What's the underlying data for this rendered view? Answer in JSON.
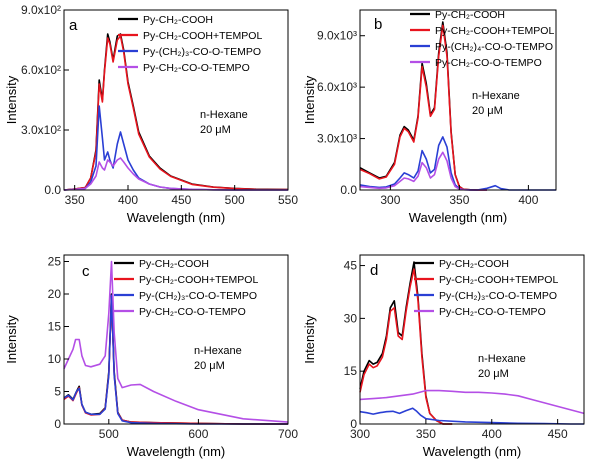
{
  "chart_data": [
    {
      "id": "a",
      "type": "line",
      "panel_letter": "a",
      "xlabel": "Wavelength (nm)",
      "ylabel": "Intensity",
      "xlim": [
        340,
        550
      ],
      "ylim": [
        0,
        900
      ],
      "xticks": [
        350,
        400,
        450,
        500,
        550
      ],
      "xtick_labels": [
        "350",
        "400",
        "450",
        "500",
        "550"
      ],
      "yticks": [
        0,
        300,
        600,
        900
      ],
      "ytick_labels": [
        "0.0",
        "3.0x10²",
        "6.0x10²",
        "9.0x10²"
      ],
      "annotation": [
        "n-Hexane",
        "20 μM"
      ],
      "legend": [
        "Py-CH₂-COOH",
        "Py-CH₂-COOH+TEMPOL",
        "Py-(CH₂)₃-CO-O-TEMPO",
        "Py-CH₂-CO-O-TEMPO"
      ],
      "series": [
        {
          "name": "Py-CH₂-COOH",
          "color": "#000000",
          "x": [
            340,
            350,
            360,
            365,
            370,
            373,
            376,
            378,
            381,
            383,
            386,
            390,
            393,
            396,
            400,
            405,
            410,
            420,
            430,
            440,
            460,
            480,
            500,
            520,
            550
          ],
          "y": [
            0,
            5,
            12,
            60,
            200,
            550,
            450,
            600,
            780,
            740,
            650,
            770,
            780,
            700,
            540,
            420,
            290,
            170,
            110,
            70,
            30,
            15,
            8,
            4,
            2
          ]
        },
        {
          "name": "Py-CH₂-COOH+TEMPOL",
          "color": "#e8141e",
          "x": [
            340,
            350,
            360,
            365,
            370,
            373,
            376,
            378,
            381,
            383,
            386,
            390,
            393,
            396,
            400,
            405,
            410,
            420,
            430,
            440,
            460,
            480,
            500,
            520,
            550
          ],
          "y": [
            0,
            5,
            12,
            60,
            190,
            530,
            440,
            590,
            760,
            730,
            640,
            750,
            770,
            690,
            530,
            410,
            280,
            165,
            105,
            68,
            28,
            14,
            7,
            3,
            2
          ]
        },
        {
          "name": "Py-(CH₂)₃-CO-O-TEMPO",
          "color": "#2a3fd4",
          "x": [
            340,
            350,
            360,
            365,
            370,
            373,
            376,
            378,
            381,
            383,
            386,
            390,
            393,
            396,
            400,
            405,
            410,
            420,
            430,
            440,
            460,
            480,
            500,
            520,
            550
          ],
          "y": [
            0,
            3,
            8,
            40,
            120,
            420,
            260,
            150,
            190,
            150,
            110,
            230,
            290,
            230,
            150,
            100,
            60,
            30,
            15,
            8,
            3,
            1,
            0,
            0,
            0
          ]
        },
        {
          "name": "Py-CH₂-CO-O-TEMPO",
          "color": "#b44fe6",
          "x": [
            340,
            350,
            360,
            365,
            370,
            373,
            376,
            378,
            381,
            383,
            386,
            390,
            393,
            396,
            400,
            405,
            410,
            420,
            430,
            440,
            460,
            480,
            500,
            520,
            550
          ],
          "y": [
            0,
            3,
            8,
            30,
            70,
            140,
            110,
            100,
            150,
            140,
            120,
            150,
            160,
            140,
            110,
            80,
            55,
            30,
            15,
            8,
            3,
            1,
            0,
            0,
            0
          ]
        }
      ]
    },
    {
      "id": "b",
      "type": "line",
      "panel_letter": "b",
      "xlabel": "Wavelength (nm)",
      "ylabel": "Intensity",
      "xlim": [
        278,
        420
      ],
      "ylim": [
        0,
        10500
      ],
      "xticks": [
        300,
        350,
        400
      ],
      "xtick_labels": [
        "300",
        "350",
        "400"
      ],
      "yticks": [
        0,
        3000,
        6000,
        9000
      ],
      "ytick_labels": [
        "0.0",
        "3.0x10³",
        "6.0x10³",
        "9.0x10³"
      ],
      "annotation": [
        "n-Hexane",
        "20 μM"
      ],
      "legend": [
        "Py-CH₂-COOH",
        "Py-CH₂-COOH+TEMPOL",
        "Py-(CH₂)₄-CO-O-TEMPO",
        "Py-CH₂-CO-O-TEMPO"
      ],
      "series": [
        {
          "name": "Py-CH₂-COOH",
          "color": "#000000",
          "x": [
            278,
            285,
            292,
            297,
            303,
            307,
            310,
            313,
            317,
            320,
            323,
            326,
            329,
            332,
            335,
            338,
            341,
            344,
            347,
            350,
            353,
            358,
            363,
            370
          ],
          "y": [
            1300,
            1000,
            700,
            800,
            1600,
            3200,
            3700,
            3500,
            2900,
            4300,
            7400,
            6200,
            4400,
            4800,
            8000,
            9800,
            8000,
            3400,
            900,
            200,
            40,
            10,
            0,
            0
          ]
        },
        {
          "name": "Py-CH₂-COOH+TEMPOL",
          "color": "#e8141e",
          "x": [
            278,
            285,
            292,
            297,
            303,
            307,
            310,
            313,
            317,
            320,
            323,
            326,
            329,
            332,
            335,
            338,
            341,
            344,
            347,
            350,
            353,
            358,
            363,
            370
          ],
          "y": [
            1200,
            950,
            650,
            760,
            1500,
            3100,
            3600,
            3400,
            2800,
            4200,
            7200,
            6000,
            4300,
            4700,
            7800,
            9600,
            7800,
            3300,
            880,
            190,
            40,
            10,
            0,
            0
          ]
        },
        {
          "name": "Py-(CH₂)₄-CO-O-TEMPO",
          "color": "#2a3fd4",
          "x": [
            278,
            285,
            292,
            297,
            303,
            307,
            310,
            313,
            317,
            320,
            323,
            326,
            329,
            332,
            335,
            338,
            341,
            344,
            347,
            350,
            353,
            358,
            363,
            370,
            376,
            380,
            386,
            400,
            420
          ],
          "y": [
            300,
            200,
            150,
            180,
            350,
            700,
            1000,
            900,
            700,
            1100,
            2300,
            1800,
            1000,
            1200,
            2600,
            3100,
            2500,
            1000,
            300,
            80,
            20,
            5,
            0,
            100,
            250,
            80,
            0,
            0,
            0
          ]
        },
        {
          "name": "Py-CH₂-CO-O-TEMPO",
          "color": "#b44fe6",
          "x": [
            278,
            285,
            292,
            297,
            303,
            307,
            310,
            313,
            317,
            320,
            323,
            326,
            329,
            332,
            335,
            338,
            341,
            344,
            347,
            350,
            353,
            358,
            363,
            370
          ],
          "y": [
            200,
            150,
            100,
            120,
            250,
            500,
            700,
            650,
            500,
            800,
            1600,
            1300,
            700,
            900,
            1800,
            2200,
            1700,
            700,
            200,
            60,
            15,
            0,
            0,
            0
          ]
        }
      ]
    },
    {
      "id": "c",
      "type": "line",
      "panel_letter": "c",
      "xlabel": "Wavelength (nm)",
      "ylabel": "Intensity",
      "xlim": [
        450,
        700
      ],
      "ylim": [
        0,
        26
      ],
      "xticks": [
        500,
        600,
        700
      ],
      "xtick_labels": [
        "500",
        "600",
        "700"
      ],
      "yticks": [
        0,
        5,
        10,
        15,
        20,
        25
      ],
      "ytick_labels": [
        "0",
        "5",
        "10",
        "15",
        "20",
        "25"
      ],
      "annotation": [
        "n-Hexane",
        "20 μM"
      ],
      "legend": [
        "Py-CH₂-COOH",
        "Py-CH₂-COOH+TEMPOL",
        "Py-(CH₂)₃-CO-O-TEMPO",
        "Py-CH₂-CO-O-TEMPO"
      ],
      "series": [
        {
          "name": "Py-CH₂-COOH",
          "color": "#000000",
          "x": [
            450,
            455,
            460,
            464,
            467,
            470,
            474,
            480,
            490,
            496,
            500,
            503,
            506,
            510,
            515,
            525,
            550,
            600,
            650,
            700
          ],
          "y": [
            4,
            4.5,
            3.8,
            5,
            5.8,
            3,
            1.8,
            1.5,
            1.6,
            2.5,
            8,
            20,
            8,
            1.8,
            0.6,
            0.3,
            0.2,
            0.1,
            0,
            0
          ]
        },
        {
          "name": "Py-CH₂-COOH+TEMPOL",
          "color": "#e8141e",
          "x": [
            450,
            455,
            460,
            464,
            467,
            470,
            474,
            480,
            490,
            496,
            500,
            503,
            506,
            510,
            515,
            525,
            550,
            600,
            650,
            700
          ],
          "y": [
            3.8,
            4.3,
            3.6,
            4.8,
            5.6,
            2.9,
            1.7,
            1.4,
            1.5,
            2.4,
            7.6,
            19.5,
            7.6,
            1.7,
            0.6,
            0.3,
            0.2,
            0.1,
            0,
            0
          ]
        },
        {
          "name": "Py-(CH₂)₃-CO-O-TEMPO",
          "color": "#2a3fd4",
          "x": [
            450,
            455,
            460,
            464,
            467,
            470,
            474,
            480,
            490,
            496,
            500,
            503,
            506,
            510,
            515,
            525,
            550,
            600,
            650,
            700
          ],
          "y": [
            4,
            4.4,
            3.7,
            5,
            5.5,
            3,
            1.8,
            1.5,
            1.5,
            2.3,
            7.5,
            19.8,
            7.5,
            1.6,
            0.5,
            0.2,
            0.1,
            0,
            0,
            0
          ]
        },
        {
          "name": "Py-CH₂-CO-O-TEMPO",
          "color": "#b44fe6",
          "x": [
            450,
            455,
            460,
            463,
            467,
            470,
            474,
            480,
            490,
            496,
            500,
            503,
            506,
            510,
            515,
            525,
            535,
            550,
            575,
            600,
            650,
            700
          ],
          "y": [
            8.5,
            10,
            11.5,
            13,
            13,
            10.5,
            9,
            8.8,
            9.2,
            10.5,
            17,
            25,
            14,
            7,
            5.6,
            6,
            6.1,
            5,
            3.5,
            2.2,
            0.8,
            0.3
          ]
        }
      ]
    },
    {
      "id": "d",
      "type": "line",
      "panel_letter": "d",
      "xlabel": "Wavelength (nm)",
      "ylabel": "Intensity",
      "xlim": [
        300,
        470
      ],
      "ylim": [
        0,
        48
      ],
      "xticks": [
        300,
        350,
        400,
        450
      ],
      "xtick_labels": [
        "300",
        "350",
        "400",
        "450"
      ],
      "yticks": [
        0,
        15,
        30,
        45
      ],
      "ytick_labels": [
        "0",
        "15",
        "30",
        "45"
      ],
      "annotation": [
        "n-Hexane",
        "20 μM"
      ],
      "legend": [
        "Py-CH₂-COOH",
        "Py-CH₂-COOH+TEMPOL",
        "Py-(CH₂)₃-CO-O-TEMPO",
        "Py-CH₂-CO-O-TEMPO"
      ],
      "series": [
        {
          "name": "Py-CH₂-COOH",
          "color": "#000000",
          "x": [
            300,
            303,
            307,
            310,
            313,
            317,
            320,
            323,
            326,
            329,
            332,
            335,
            338,
            341,
            344,
            347,
            350,
            353,
            358,
            363,
            370
          ],
          "y": [
            10,
            15,
            18,
            17,
            17.5,
            20,
            25,
            33,
            35,
            26,
            25,
            33,
            40,
            46,
            36,
            20,
            8,
            3,
            1,
            0,
            0
          ]
        },
        {
          "name": "Py-CH₂-COOH+TEMPOL",
          "color": "#e8141e",
          "x": [
            300,
            303,
            307,
            310,
            313,
            317,
            320,
            323,
            326,
            329,
            332,
            335,
            338,
            341,
            344,
            347,
            350,
            353,
            358,
            363,
            370
          ],
          "y": [
            9,
            14,
            17,
            16,
            16.5,
            19,
            24,
            32,
            33,
            25,
            24,
            32,
            39,
            44,
            35,
            19,
            7.5,
            3,
            1,
            0,
            0
          ]
        },
        {
          "name": "Py-(CH₂)₃-CO-O-TEMPO",
          "color": "#2a3fd4",
          "x": [
            300,
            305,
            310,
            315,
            320,
            325,
            330,
            335,
            340,
            343,
            346,
            350,
            360,
            380,
            400,
            420,
            440,
            460,
            470
          ],
          "y": [
            3.5,
            3.2,
            2.8,
            3.2,
            3.5,
            3.6,
            3,
            3.8,
            4.5,
            3.6,
            2.5,
            1.5,
            1,
            0.6,
            0.4,
            0.2,
            0.1,
            0,
            0
          ]
        },
        {
          "name": "Py-CH₂-CO-O-TEMPO",
          "color": "#b44fe6",
          "x": [
            300,
            310,
            320,
            330,
            340,
            350,
            360,
            370,
            380,
            390,
            400,
            410,
            420,
            430,
            440,
            450,
            460,
            470
          ],
          "y": [
            7,
            7.2,
            7.5,
            8,
            8.5,
            9.5,
            9.5,
            9.3,
            9,
            9,
            8.8,
            8.5,
            8,
            7,
            6,
            5,
            4,
            3
          ]
        }
      ]
    }
  ]
}
